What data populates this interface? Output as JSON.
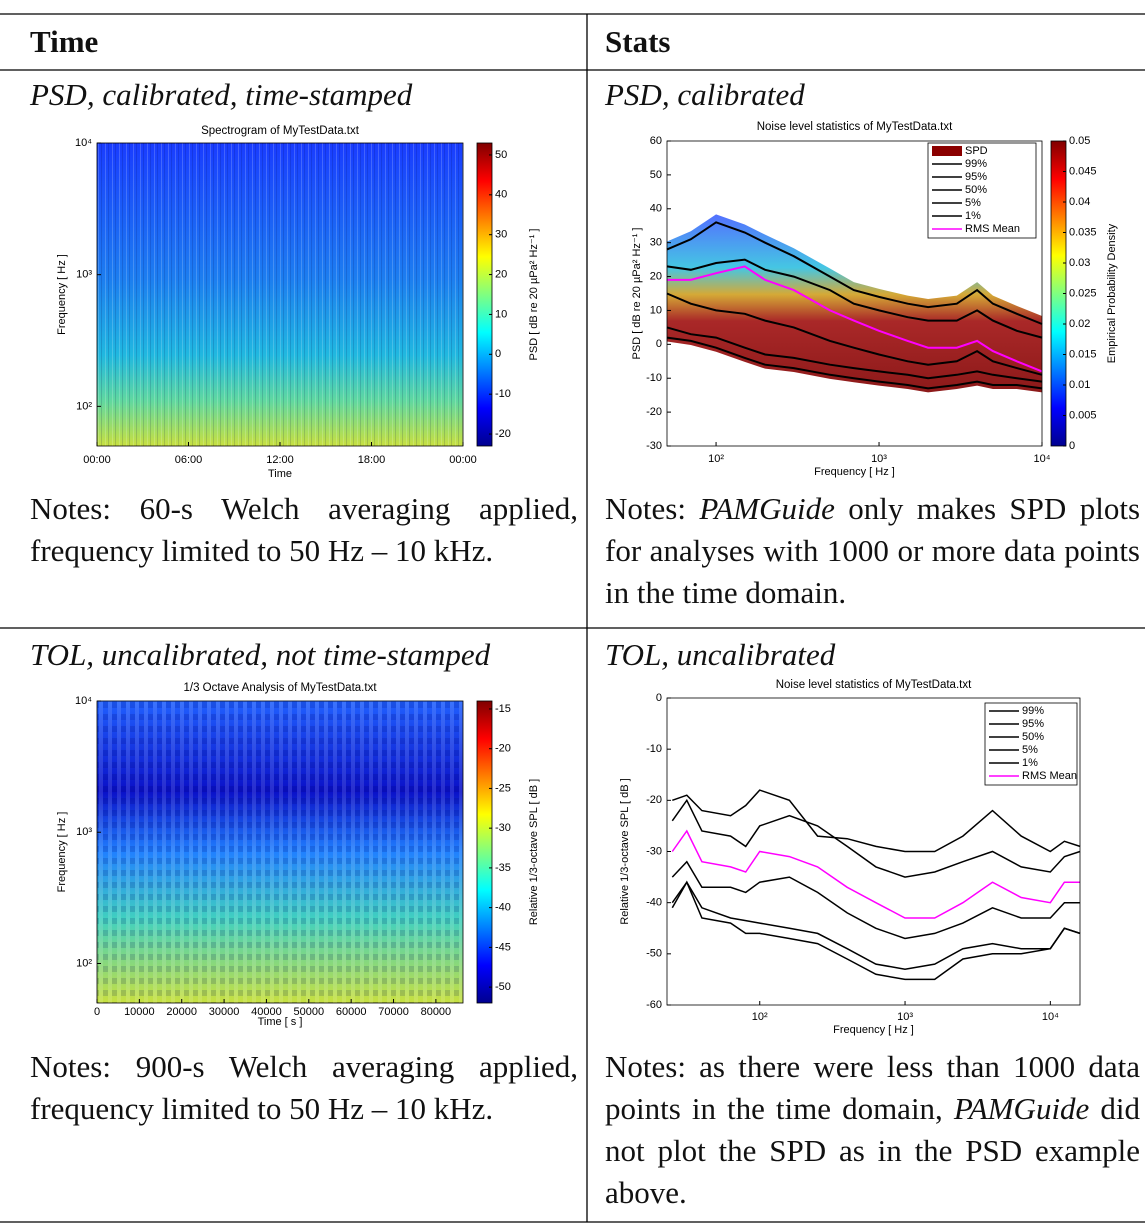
{
  "table": {
    "headers": [
      "Time",
      "Stats"
    ],
    "rows": [
      {
        "cells": [
          {
            "caption": "PSD, calibrated, time-stamped",
            "chart_data": {
              "type": "heatmap",
              "title": "Spectrogram of MyTestData.txt",
              "xlabel": "Time",
              "ylabel": "Frequency [ Hz ]",
              "xlim": [
                0,
                24
              ],
              "xticks": [
                {
                  "value": 0,
                  "label": "00:00"
                },
                {
                  "value": 6,
                  "label": "06:00"
                },
                {
                  "value": 12,
                  "label": "12:00"
                },
                {
                  "value": 18,
                  "label": "18:00"
                },
                {
                  "value": 24,
                  "label": "00:00"
                }
              ],
              "ylim": [
                50,
                10000
              ],
              "ylog": true,
              "yticks": [
                {
                  "value": 100,
                  "label": "10²"
                },
                {
                  "value": 1000,
                  "label": "10³"
                },
                {
                  "value": 10000,
                  "label": "10⁴"
                }
              ],
              "colorbar": {
                "label": "PSD [ dB re 20 µPa² Hz⁻¹ ]",
                "lim": [
                  -23,
                  53
                ],
                "ticks": [
                  -20,
                  -10,
                  0,
                  10,
                  20,
                  30,
                  40,
                  50
                ]
              }
            },
            "notes": [
              {
                "text": "Notes: 60-s Welch averaging applied, frequency limited to 50 Hz – 10 kHz."
              }
            ]
          },
          {
            "caption": "PSD, calibrated",
            "chart_data": {
              "type": "line",
              "title": "Noise level statistics of MyTestData.txt",
              "xlabel": "Frequency [ Hz ]",
              "ylabel": "PSD [ dB re 20 µPa² Hz⁻¹ ]",
              "xlog": true,
              "xlim": [
                50,
                10000
              ],
              "xticks": [
                {
                  "value": 100,
                  "label": "10²"
                },
                {
                  "value": 1000,
                  "label": "10³"
                },
                {
                  "value": 10000,
                  "label": "10⁴"
                }
              ],
              "ylim": [
                -30,
                60
              ],
              "yticks": [
                -30,
                -20,
                -10,
                0,
                10,
                20,
                30,
                40,
                50,
                60
              ],
              "x": [
                50,
                70,
                100,
                150,
                200,
                300,
                500,
                700,
                1000,
                1500,
                2000,
                3000,
                4000,
                5000,
                7000,
                10000
              ],
              "series": [
                {
                  "name": "SPD",
                  "color": "#8b0000"
                },
                {
                  "name": "99%",
                  "color": "#000000",
                  "values": [
                    28,
                    31,
                    36,
                    33,
                    30,
                    26,
                    20,
                    16,
                    14,
                    12,
                    11,
                    12,
                    16,
                    12,
                    9,
                    6
                  ]
                },
                {
                  "name": "95%",
                  "color": "#000000",
                  "values": [
                    23,
                    22,
                    24,
                    25,
                    22,
                    20,
                    16,
                    12,
                    10,
                    8,
                    7,
                    7,
                    10,
                    7,
                    4,
                    2
                  ]
                },
                {
                  "name": "50%",
                  "color": "#000000",
                  "values": [
                    15,
                    12,
                    10,
                    9,
                    7,
                    5,
                    1,
                    -1,
                    -3,
                    -5,
                    -6,
                    -5,
                    -2,
                    -5,
                    -7,
                    -9
                  ]
                },
                {
                  "name": "5%",
                  "color": "#000000",
                  "values": [
                    5,
                    3,
                    2,
                    -1,
                    -3,
                    -4,
                    -6,
                    -7,
                    -8,
                    -9,
                    -10,
                    -9,
                    -8,
                    -9,
                    -10,
                    -11
                  ]
                },
                {
                  "name": "1%",
                  "color": "#000000",
                  "values": [
                    2,
                    1,
                    -1,
                    -4,
                    -6,
                    -7,
                    -9,
                    -10,
                    -11,
                    -12,
                    -13,
                    -12,
                    -11,
                    -12,
                    -12,
                    -13
                  ]
                },
                {
                  "name": "RMS Mean",
                  "color": "#ff00ff",
                  "values": [
                    19,
                    19,
                    21,
                    23,
                    19,
                    16,
                    10,
                    7,
                    4,
                    1,
                    -1,
                    -1,
                    1,
                    -2,
                    -5,
                    -8
                  ]
                }
              ],
              "legend": "upper right",
              "colorbar": {
                "label": "Empirical Probability Density",
                "lim": [
                  0,
                  0.05
                ],
                "ticks": [
                  0,
                  0.005,
                  0.01,
                  0.015,
                  0.02,
                  0.025,
                  0.03,
                  0.035,
                  0.04,
                  0.045,
                  0.05
                ]
              }
            },
            "notes": [
              {
                "text": "Notes: "
              },
              {
                "text": "PAMGuide",
                "italic": true
              },
              {
                "text": " only makes SPD plots for analyses with 1000 or more data points in the time domain."
              }
            ]
          }
        ]
      },
      {
        "cells": [
          {
            "caption": "TOL, uncalibrated, not time-stamped",
            "chart_data": {
              "type": "heatmap",
              "title": "1/3 Octave Analysis of MyTestData.txt",
              "xlabel": "Time [ s ]",
              "ylabel": "Frequency [ Hz ]",
              "xlim": [
                0,
                86400
              ],
              "xticks": [
                0,
                10000,
                20000,
                30000,
                40000,
                50000,
                60000,
                70000,
                80000
              ],
              "ylim": [
                50,
                10000
              ],
              "ylog": true,
              "yticks": [
                {
                  "value": 100,
                  "label": "10²"
                },
                {
                  "value": 1000,
                  "label": "10³"
                },
                {
                  "value": 10000,
                  "label": "10⁴"
                }
              ],
              "colorbar": {
                "label": "Relative 1/3-octave SPL [ dB ]",
                "lim": [
                  -52,
                  -14
                ],
                "ticks": [
                  -50,
                  -45,
                  -40,
                  -35,
                  -30,
                  -25,
                  -20,
                  -15
                ]
              }
            },
            "notes": [
              {
                "text": "Notes: 900-s Welch averaging applied, frequency limited to 50 Hz – 10 kHz."
              }
            ]
          },
          {
            "caption": "TOL, uncalibrated",
            "chart_data": {
              "type": "line",
              "title": "Noise level statistics of MyTestData.txt",
              "xlabel": "Frequency [ Hz ]",
              "ylabel": "Relative 1/3-octave SPL [ dB ]",
              "xlog": true,
              "xlim": [
                23,
                16000
              ],
              "xticks": [
                {
                  "value": 100,
                  "label": "10²"
                },
                {
                  "value": 1000,
                  "label": "10³"
                },
                {
                  "value": 10000,
                  "label": "10⁴"
                }
              ],
              "ylim": [
                -60,
                0
              ],
              "yticks": [
                -60,
                -50,
                -40,
                -30,
                -20,
                -10,
                0
              ],
              "x": [
                25,
                31.5,
                40,
                63,
                80,
                100,
                160,
                250,
                400,
                630,
                1000,
                1600,
                2500,
                4000,
                6300,
                10000,
                12500,
                16000
              ],
              "series": [
                {
                  "name": "99%",
                  "color": "#000000",
                  "values": [
                    -20,
                    -19,
                    -22,
                    -23,
                    -21,
                    -18,
                    -20,
                    -27,
                    -27.5,
                    -29,
                    -30,
                    -30,
                    -27,
                    -22,
                    -27,
                    -30,
                    -28,
                    -29
                  ]
                },
                {
                  "name": "95%",
                  "color": "#000000",
                  "values": [
                    -24,
                    -20,
                    -26,
                    -27,
                    -29,
                    -25,
                    -23,
                    -25,
                    -29,
                    -33,
                    -35,
                    -34,
                    -32,
                    -30,
                    -33,
                    -34,
                    -31,
                    -30
                  ]
                },
                {
                  "name": "50%",
                  "color": "#000000",
                  "values": [
                    -35,
                    -32,
                    -37,
                    -37,
                    -38,
                    -36,
                    -35,
                    -38,
                    -42,
                    -45,
                    -47,
                    -46,
                    -44,
                    -41,
                    -43,
                    -43,
                    -40,
                    -40
                  ]
                },
                {
                  "name": "5%",
                  "color": "#000000",
                  "values": [
                    -40,
                    -36,
                    -41,
                    -43,
                    -43.5,
                    -44,
                    -45,
                    -46,
                    -49,
                    -52,
                    -53,
                    -52,
                    -49,
                    -48,
                    -49,
                    -49,
                    -45,
                    -46
                  ]
                },
                {
                  "name": "1%",
                  "color": "#000000",
                  "values": [
                    -41,
                    -36,
                    -43,
                    -44,
                    -46,
                    -46,
                    -47,
                    -48,
                    -51,
                    -54,
                    -55,
                    -55,
                    -51,
                    -50,
                    -50,
                    -49,
                    -45,
                    -46
                  ]
                },
                {
                  "name": "RMS Mean",
                  "color": "#ff00ff",
                  "values": [
                    -30,
                    -26,
                    -32,
                    -33,
                    -34,
                    -30,
                    -31,
                    -33,
                    -37,
                    -40,
                    -43,
                    -43,
                    -40,
                    -36,
                    -39,
                    -40,
                    -36,
                    -36
                  ]
                }
              ],
              "legend": "upper right"
            },
            "notes": [
              {
                "text": "Notes: as there were less than 1000 data points in the time domain, "
              },
              {
                "text": "PAMGuide",
                "italic": true
              },
              {
                "text": " did not plot the SPD as in the PSD example above."
              }
            ]
          }
        ]
      }
    ]
  }
}
